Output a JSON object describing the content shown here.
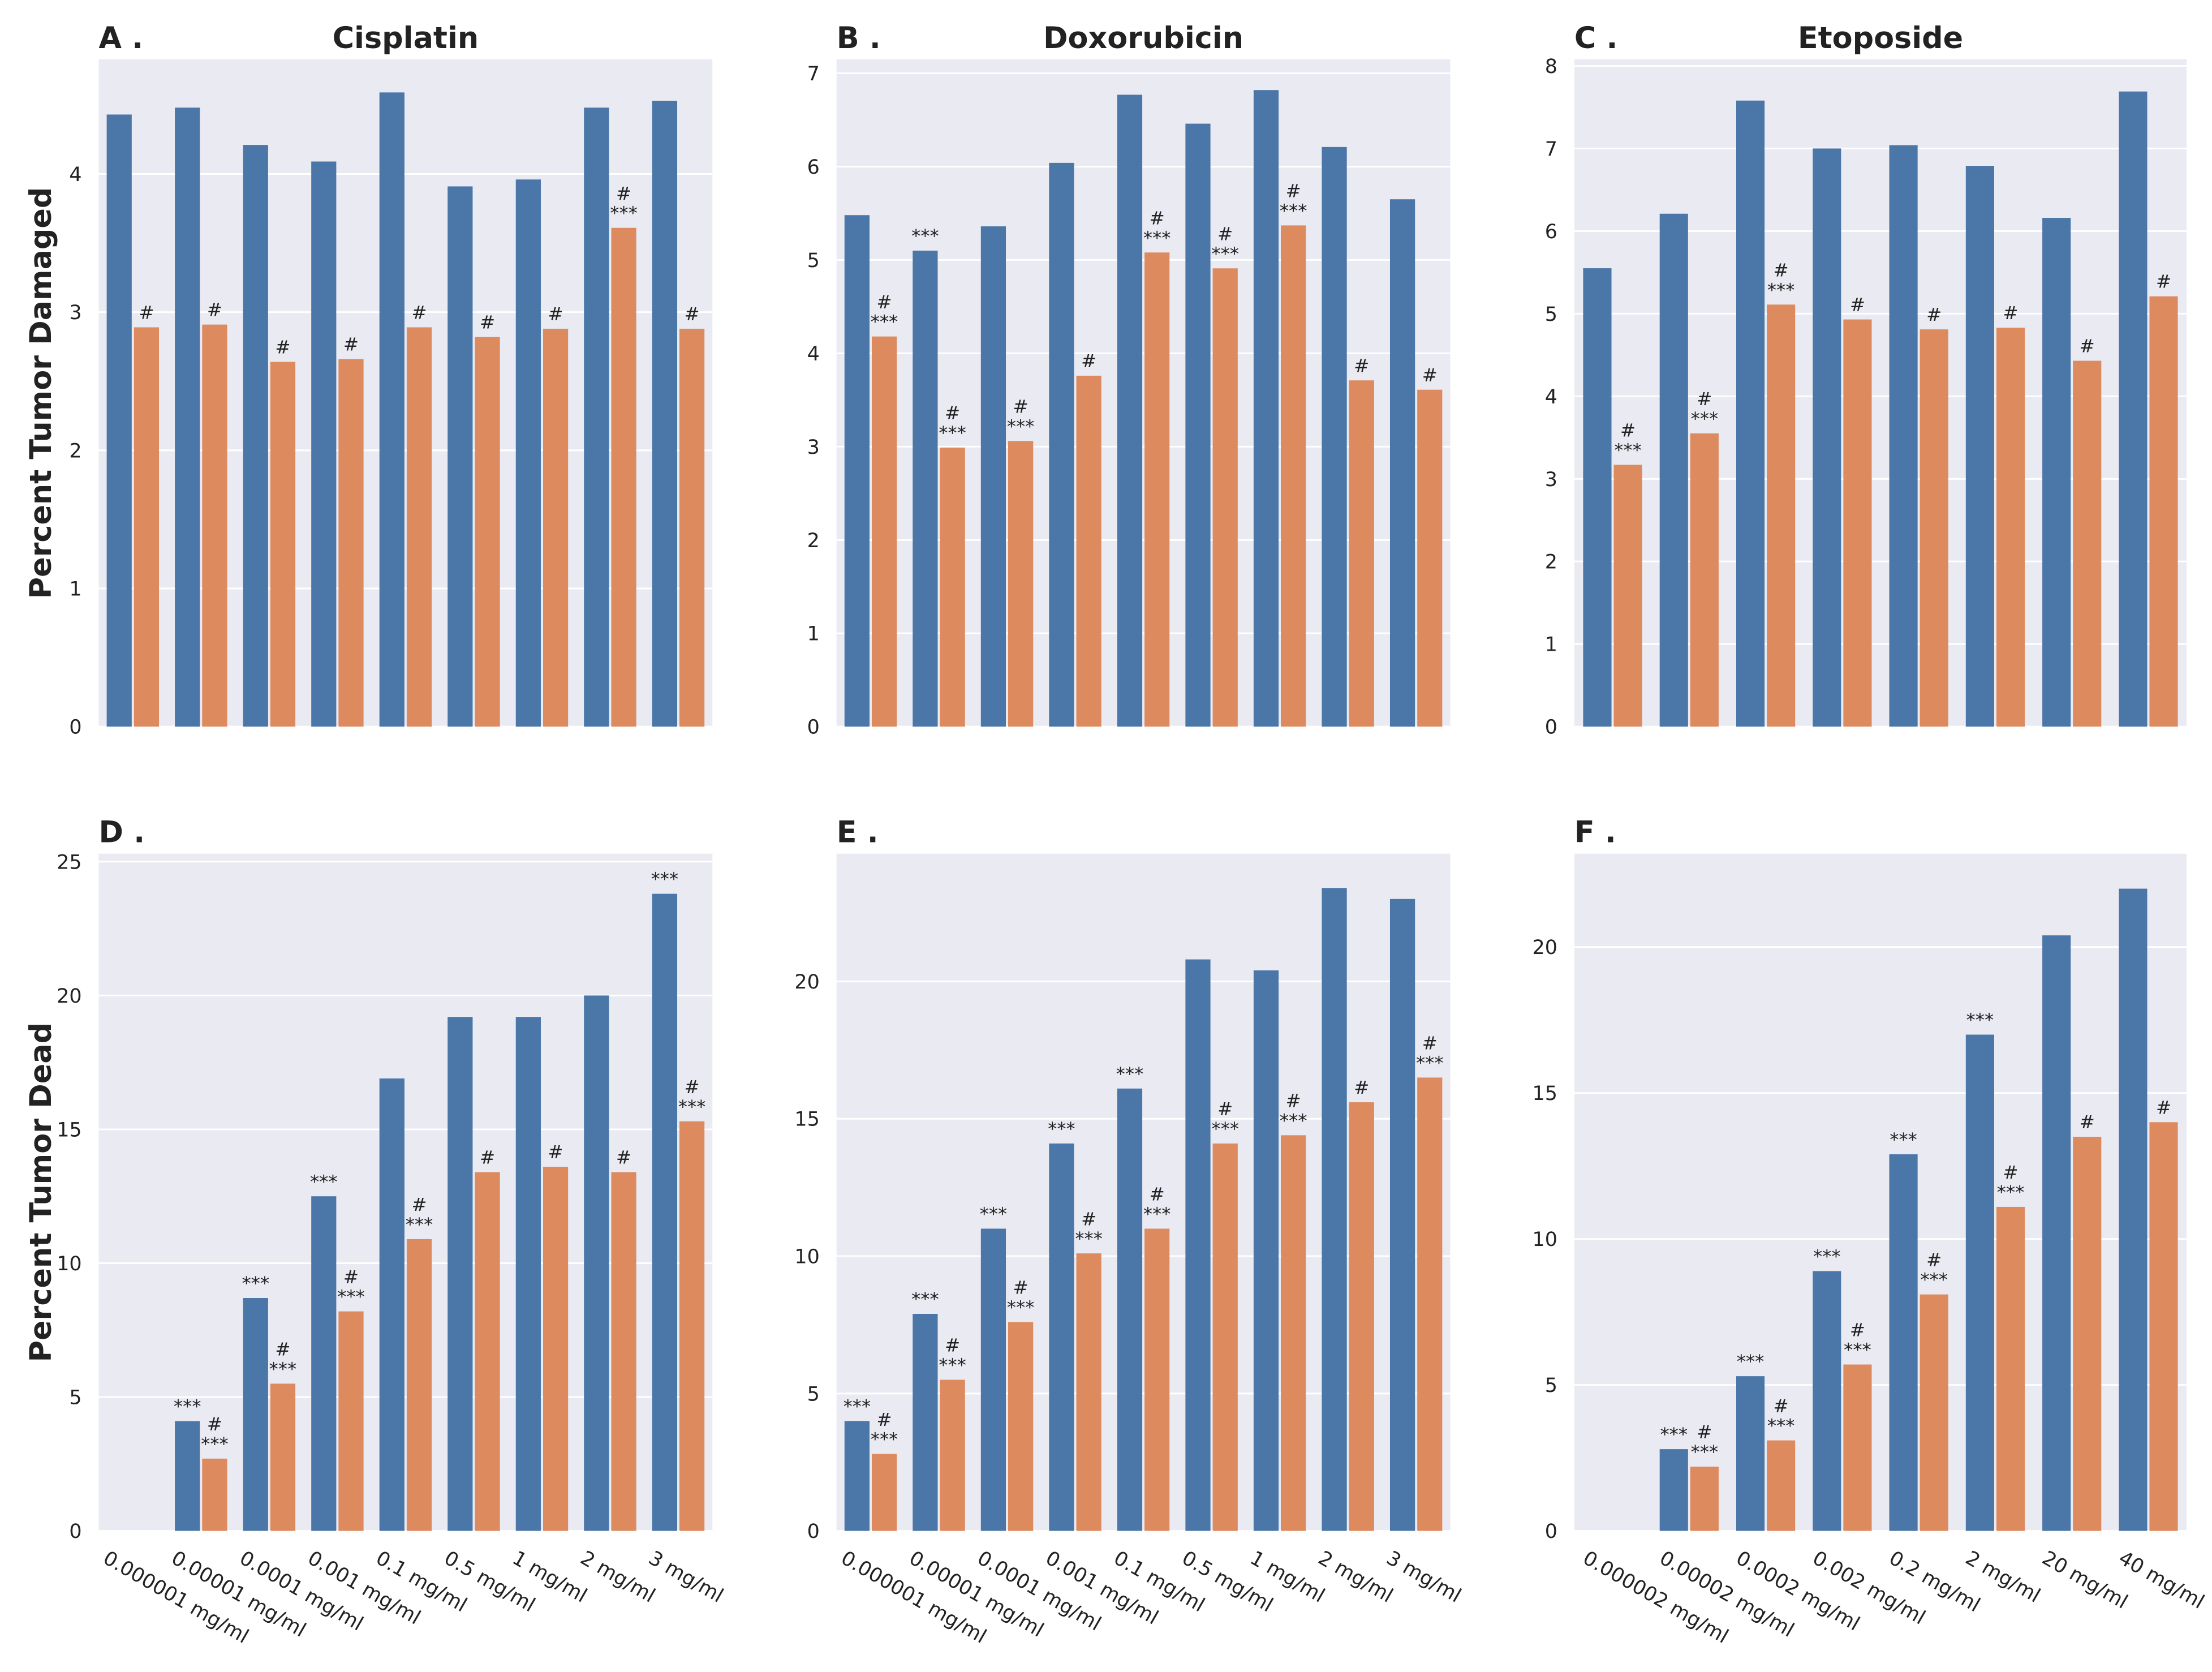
{
  "chart_data": [
    {
      "type": "bar",
      "panel": "A .",
      "title": "Cisplatin",
      "ylabel": "Percent Tumor Damaged",
      "categories": [
        null,
        null,
        null,
        null,
        null,
        null,
        null,
        null,
        null
      ],
      "ylim": [
        0,
        4.83
      ],
      "yticks": [
        0,
        1,
        2,
        3,
        4
      ],
      "grid": true,
      "series": [
        {
          "color": "#4a76a8",
          "values": [
            4.43,
            4.48,
            4.21,
            4.09,
            4.59,
            3.91,
            3.96,
            4.48,
            4.53
          ],
          "annotations": [
            null,
            null,
            null,
            null,
            null,
            null,
            null,
            null,
            null
          ]
        },
        {
          "color": "#dd8a5e",
          "values": [
            2.89,
            2.91,
            2.64,
            2.66,
            2.89,
            2.82,
            2.88,
            3.61,
            2.88
          ],
          "annotations": [
            [
              "#"
            ],
            [
              "#"
            ],
            [
              "#"
            ],
            [
              "#"
            ],
            [
              "#"
            ],
            [
              "#"
            ],
            [
              "#"
            ],
            [
              "#",
              "***"
            ],
            [
              "#"
            ]
          ]
        }
      ]
    },
    {
      "type": "bar",
      "panel": "B .",
      "title": "Doxorubicin",
      "categories": [
        null,
        null,
        null,
        null,
        null,
        null,
        null,
        null,
        null
      ],
      "ylim": [
        0,
        7.15
      ],
      "yticks": [
        0,
        1,
        2,
        3,
        4,
        5,
        6,
        7
      ],
      "grid": true,
      "series": [
        {
          "color": "#4a76a8",
          "values": [
            5.48,
            5.1,
            5.36,
            6.04,
            6.77,
            6.46,
            6.82,
            6.21,
            5.65
          ],
          "annotations": [
            null,
            [
              "***"
            ],
            null,
            null,
            null,
            null,
            null,
            null,
            null
          ]
        },
        {
          "color": "#dd8a5e",
          "values": [
            4.18,
            2.99,
            3.06,
            3.76,
            5.08,
            4.91,
            5.37,
            3.71,
            3.61
          ],
          "annotations": [
            [
              "#",
              "***"
            ],
            [
              "#",
              "***"
            ],
            [
              "#",
              "***"
            ],
            [
              "#"
            ],
            [
              "#",
              "***"
            ],
            [
              "#",
              "***"
            ],
            [
              "#",
              "***"
            ],
            [
              "#"
            ],
            [
              "#"
            ]
          ]
        }
      ]
    },
    {
      "type": "bar",
      "panel": "C .",
      "title": "Etoposide",
      "categories": [
        null,
        null,
        null,
        null,
        null,
        null,
        null,
        null
      ],
      "ylim": [
        0,
        8.08
      ],
      "yticks": [
        0,
        1,
        2,
        3,
        4,
        5,
        6,
        7,
        8
      ],
      "grid": true,
      "series": [
        {
          "color": "#4a76a8",
          "values": [
            5.55,
            6.21,
            7.58,
            7.0,
            7.04,
            6.79,
            6.16,
            7.69
          ],
          "annotations": [
            null,
            null,
            null,
            null,
            null,
            null,
            null,
            null
          ]
        },
        {
          "color": "#dd8a5e",
          "values": [
            3.17,
            3.55,
            5.11,
            4.93,
            4.81,
            4.83,
            4.43,
            5.21
          ],
          "annotations": [
            [
              "#",
              "***"
            ],
            [
              "#",
              "***"
            ],
            [
              "#",
              "***"
            ],
            [
              "#"
            ],
            [
              "#"
            ],
            [
              "#"
            ],
            [
              "#"
            ],
            [
              "#"
            ]
          ]
        }
      ]
    },
    {
      "type": "bar",
      "panel": "D .",
      "ylabel": "Percent Tumor Dead",
      "categories": [
        "0.000001 mg/ml",
        "0.00001 mg/ml",
        "0.0001 mg/ml",
        "0.001 mg/ml",
        "0.1 mg/ml",
        "0.5 mg/ml",
        "1 mg/ml",
        "2 mg/ml",
        "3 mg/ml"
      ],
      "ylim": [
        0,
        25.3
      ],
      "yticks": [
        0,
        5,
        10,
        15,
        20,
        25
      ],
      "grid": true,
      "series": [
        {
          "color": "#4a76a8",
          "values": [
            null,
            4.1,
            8.7,
            12.5,
            16.9,
            19.2,
            19.2,
            20.0,
            23.8
          ],
          "annotations": [
            null,
            [
              "***"
            ],
            [
              "***"
            ],
            [
              "***"
            ],
            null,
            null,
            null,
            null,
            [
              "***"
            ]
          ]
        },
        {
          "color": "#dd8a5e",
          "values": [
            null,
            2.7,
            5.5,
            8.2,
            10.9,
            13.4,
            13.6,
            13.4,
            15.3
          ],
          "annotations": [
            null,
            [
              "#",
              "***"
            ],
            [
              "#",
              "***"
            ],
            [
              "#",
              "***"
            ],
            [
              "#",
              "***"
            ],
            [
              "#"
            ],
            [
              "#"
            ],
            [
              "#"
            ],
            [
              "#",
              "***"
            ]
          ]
        }
      ]
    },
    {
      "type": "bar",
      "panel": "E .",
      "categories": [
        "0.000001 mg/ml",
        "0.00001 mg/ml",
        "0.0001 mg/ml",
        "0.001 mg/ml",
        "0.1 mg/ml",
        "0.5 mg/ml",
        "1 mg/ml",
        "2 mg/ml",
        "3 mg/ml"
      ],
      "ylim": [
        0,
        24.65
      ],
      "yticks": [
        0,
        5,
        10,
        15,
        20
      ],
      "grid": true,
      "series": [
        {
          "color": "#4a76a8",
          "values": [
            4.0,
            7.9,
            11.0,
            14.1,
            16.1,
            20.8,
            20.4,
            23.4,
            23.0
          ],
          "annotations": [
            [
              "***"
            ],
            [
              "***"
            ],
            [
              "***"
            ],
            [
              "***"
            ],
            [
              "***"
            ],
            null,
            null,
            null,
            null
          ]
        },
        {
          "color": "#dd8a5e",
          "values": [
            2.8,
            5.5,
            7.6,
            10.1,
            11.0,
            14.1,
            14.4,
            15.6,
            16.5
          ],
          "annotations": [
            [
              "#",
              "***"
            ],
            [
              "#",
              "***"
            ],
            [
              "#",
              "***"
            ],
            [
              "#",
              "***"
            ],
            [
              "#",
              "***"
            ],
            [
              "#",
              "***"
            ],
            [
              "#",
              "***"
            ],
            [
              "#"
            ],
            [
              "#",
              "***"
            ]
          ]
        }
      ]
    },
    {
      "type": "bar",
      "panel": "F .",
      "categories": [
        "0.000002 mg/ml",
        "0.00002 mg/ml",
        "0.0002 mg/ml",
        "0.002 mg/ml",
        "0.2 mg/ml",
        "2 mg/ml",
        "20 mg/ml",
        "40 mg/ml"
      ],
      "ylim": [
        0,
        23.2
      ],
      "yticks": [
        0,
        5,
        10,
        15,
        20
      ],
      "grid": true,
      "series": [
        {
          "color": "#4a76a8",
          "values": [
            null,
            2.8,
            5.3,
            8.9,
            12.9,
            17.0,
            20.4,
            22.0
          ],
          "annotations": [
            null,
            [
              "***"
            ],
            [
              "***"
            ],
            [
              "***"
            ],
            [
              "***"
            ],
            [
              "***"
            ],
            null,
            null
          ]
        },
        {
          "color": "#dd8a5e",
          "values": [
            null,
            2.2,
            3.1,
            5.7,
            8.1,
            11.1,
            13.5,
            14.0
          ],
          "annotations": [
            null,
            [
              "#",
              "***"
            ],
            [
              "#",
              "***"
            ],
            [
              "#",
              "***"
            ],
            [
              "#",
              "***"
            ],
            [
              "#",
              "***"
            ],
            [
              "#"
            ],
            [
              "#"
            ]
          ]
        }
      ]
    }
  ]
}
